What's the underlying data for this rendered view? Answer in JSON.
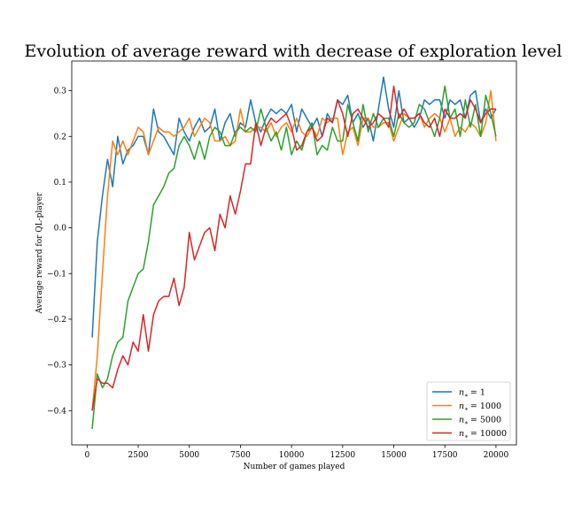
{
  "chart_data": {
    "type": "line",
    "title": "Evolution of average reward with decrease of exploration level",
    "xlabel": "Number of games played",
    "ylabel": "Average reward for QL-player",
    "xlim": [
      -750,
      21000
    ],
    "ylim": [
      -0.475,
      0.365
    ],
    "xticks": [
      0,
      2500,
      5000,
      7500,
      10000,
      12500,
      15000,
      17500,
      20000
    ],
    "yticks": [
      -0.4,
      -0.3,
      -0.2,
      -0.1,
      0.0,
      0.1,
      0.2,
      0.3
    ],
    "xtick_labels": [
      "0",
      "2500",
      "5000",
      "7500",
      "10000",
      "12500",
      "15000",
      "17500",
      "20000"
    ],
    "ytick_labels": [
      "−0.4",
      "−0.3",
      "−0.2",
      "−0.1",
      "0.0",
      "0.1",
      "0.2",
      "0.3"
    ],
    "legend_position": "bottom-right",
    "grid": false,
    "x": [
      250,
      500,
      750,
      1000,
      1250,
      1500,
      1750,
      2000,
      2250,
      2500,
      2750,
      3000,
      3250,
      3500,
      3750,
      4000,
      4250,
      4500,
      4750,
      5000,
      5250,
      5500,
      5750,
      6000,
      6250,
      6500,
      6750,
      7000,
      7250,
      7500,
      7750,
      8000,
      8250,
      8500,
      8750,
      9000,
      9250,
      9500,
      9750,
      10000,
      10250,
      10500,
      10750,
      11000,
      11250,
      11500,
      11750,
      12000,
      12250,
      12500,
      12750,
      13000,
      13250,
      13500,
      13750,
      14000,
      14250,
      14500,
      14750,
      15000,
      15250,
      15500,
      15750,
      16000,
      16250,
      16500,
      16750,
      17000,
      17250,
      17500,
      17750,
      18000,
      18250,
      18500,
      18750,
      19000,
      19250,
      19500,
      19750,
      20000
    ],
    "series": [
      {
        "name": "n_* = 1",
        "legend_label": "= 1",
        "color": "#1f77b4",
        "values": [
          -0.24,
          -0.03,
          0.07,
          0.15,
          0.09,
          0.2,
          0.14,
          0.17,
          0.18,
          0.2,
          0.2,
          0.16,
          0.26,
          0.21,
          0.2,
          0.18,
          0.16,
          0.24,
          0.21,
          0.19,
          0.22,
          0.24,
          0.21,
          0.22,
          0.26,
          0.19,
          0.23,
          0.25,
          0.2,
          0.23,
          0.22,
          0.28,
          0.23,
          0.21,
          0.24,
          0.26,
          0.25,
          0.26,
          0.25,
          0.27,
          0.21,
          0.26,
          0.24,
          0.22,
          0.24,
          0.2,
          0.25,
          0.23,
          0.28,
          0.27,
          0.29,
          0.23,
          0.25,
          0.22,
          0.24,
          0.19,
          0.26,
          0.33,
          0.26,
          0.22,
          0.3,
          0.23,
          0.24,
          0.22,
          0.24,
          0.28,
          0.27,
          0.28,
          0.28,
          0.24,
          0.28,
          0.27,
          0.28,
          0.24,
          0.29,
          0.3,
          0.23,
          0.26,
          0.24,
          0.26
        ]
      },
      {
        "name": "n_* = 1000",
        "legend_label": "= 1000",
        "color": "#ff7f0e",
        "values": [
          -0.4,
          -0.28,
          -0.1,
          0.07,
          0.19,
          0.16,
          0.19,
          0.16,
          0.19,
          0.22,
          0.21,
          0.16,
          0.19,
          0.22,
          0.21,
          0.21,
          0.2,
          0.21,
          0.22,
          0.24,
          0.2,
          0.22,
          0.24,
          0.23,
          0.19,
          0.19,
          0.2,
          0.18,
          0.19,
          0.26,
          0.21,
          0.21,
          0.22,
          0.22,
          0.21,
          0.23,
          0.2,
          0.22,
          0.23,
          0.21,
          0.24,
          0.21,
          0.2,
          0.22,
          0.2,
          0.24,
          0.23,
          0.24,
          0.24,
          0.16,
          0.21,
          0.22,
          0.18,
          0.24,
          0.24,
          0.22,
          0.22,
          0.23,
          0.23,
          0.19,
          0.22,
          0.25,
          0.24,
          0.24,
          0.25,
          0.22,
          0.24,
          0.25,
          0.24,
          0.21,
          0.24,
          0.2,
          0.22,
          0.21,
          0.23,
          0.22,
          0.2,
          0.23,
          0.3,
          0.19
        ]
      },
      {
        "name": "n_* = 5000",
        "legend_label": "= 5000",
        "color": "#2ca02c",
        "values": [
          -0.44,
          -0.32,
          -0.35,
          -0.33,
          -0.28,
          -0.25,
          -0.24,
          -0.16,
          -0.13,
          -0.1,
          -0.09,
          -0.03,
          0.05,
          0.07,
          0.09,
          0.12,
          0.13,
          0.18,
          0.2,
          0.18,
          0.15,
          0.19,
          0.15,
          0.2,
          0.22,
          0.21,
          0.18,
          0.18,
          0.21,
          0.22,
          0.21,
          0.22,
          0.21,
          0.26,
          0.22,
          0.19,
          0.21,
          0.17,
          0.22,
          0.16,
          0.19,
          0.17,
          0.21,
          0.23,
          0.16,
          0.18,
          0.17,
          0.22,
          0.19,
          0.19,
          0.27,
          0.23,
          0.19,
          0.27,
          0.21,
          0.25,
          0.22,
          0.24,
          0.24,
          0.2,
          0.25,
          0.23,
          0.22,
          0.23,
          0.27,
          0.26,
          0.23,
          0.2,
          0.24,
          0.31,
          0.24,
          0.26,
          0.2,
          0.28,
          0.22,
          0.27,
          0.2,
          0.29,
          0.25,
          0.2
        ]
      },
      {
        "name": "n_* = 10000",
        "legend_label": "= 10000",
        "color": "#d62728",
        "values": [
          -0.4,
          -0.33,
          -0.34,
          -0.34,
          -0.35,
          -0.31,
          -0.28,
          -0.3,
          -0.25,
          -0.27,
          -0.19,
          -0.27,
          -0.19,
          -0.16,
          -0.15,
          -0.15,
          -0.11,
          -0.17,
          -0.13,
          -0.01,
          -0.07,
          -0.04,
          -0.01,
          0.0,
          -0.05,
          0.03,
          0.0,
          0.07,
          0.03,
          0.08,
          0.14,
          0.14,
          0.23,
          0.18,
          0.22,
          0.24,
          0.23,
          0.24,
          0.25,
          0.22,
          0.17,
          0.18,
          0.21,
          0.22,
          0.19,
          0.2,
          0.24,
          0.23,
          0.28,
          0.25,
          0.2,
          0.25,
          0.26,
          0.24,
          0.22,
          0.23,
          0.25,
          0.24,
          0.22,
          0.31,
          0.24,
          0.26,
          0.24,
          0.24,
          0.25,
          0.23,
          0.22,
          0.24,
          0.2,
          0.26,
          0.24,
          0.24,
          0.25,
          0.24,
          0.28,
          0.26,
          0.23,
          0.25,
          0.26,
          0.26
        ]
      }
    ]
  }
}
